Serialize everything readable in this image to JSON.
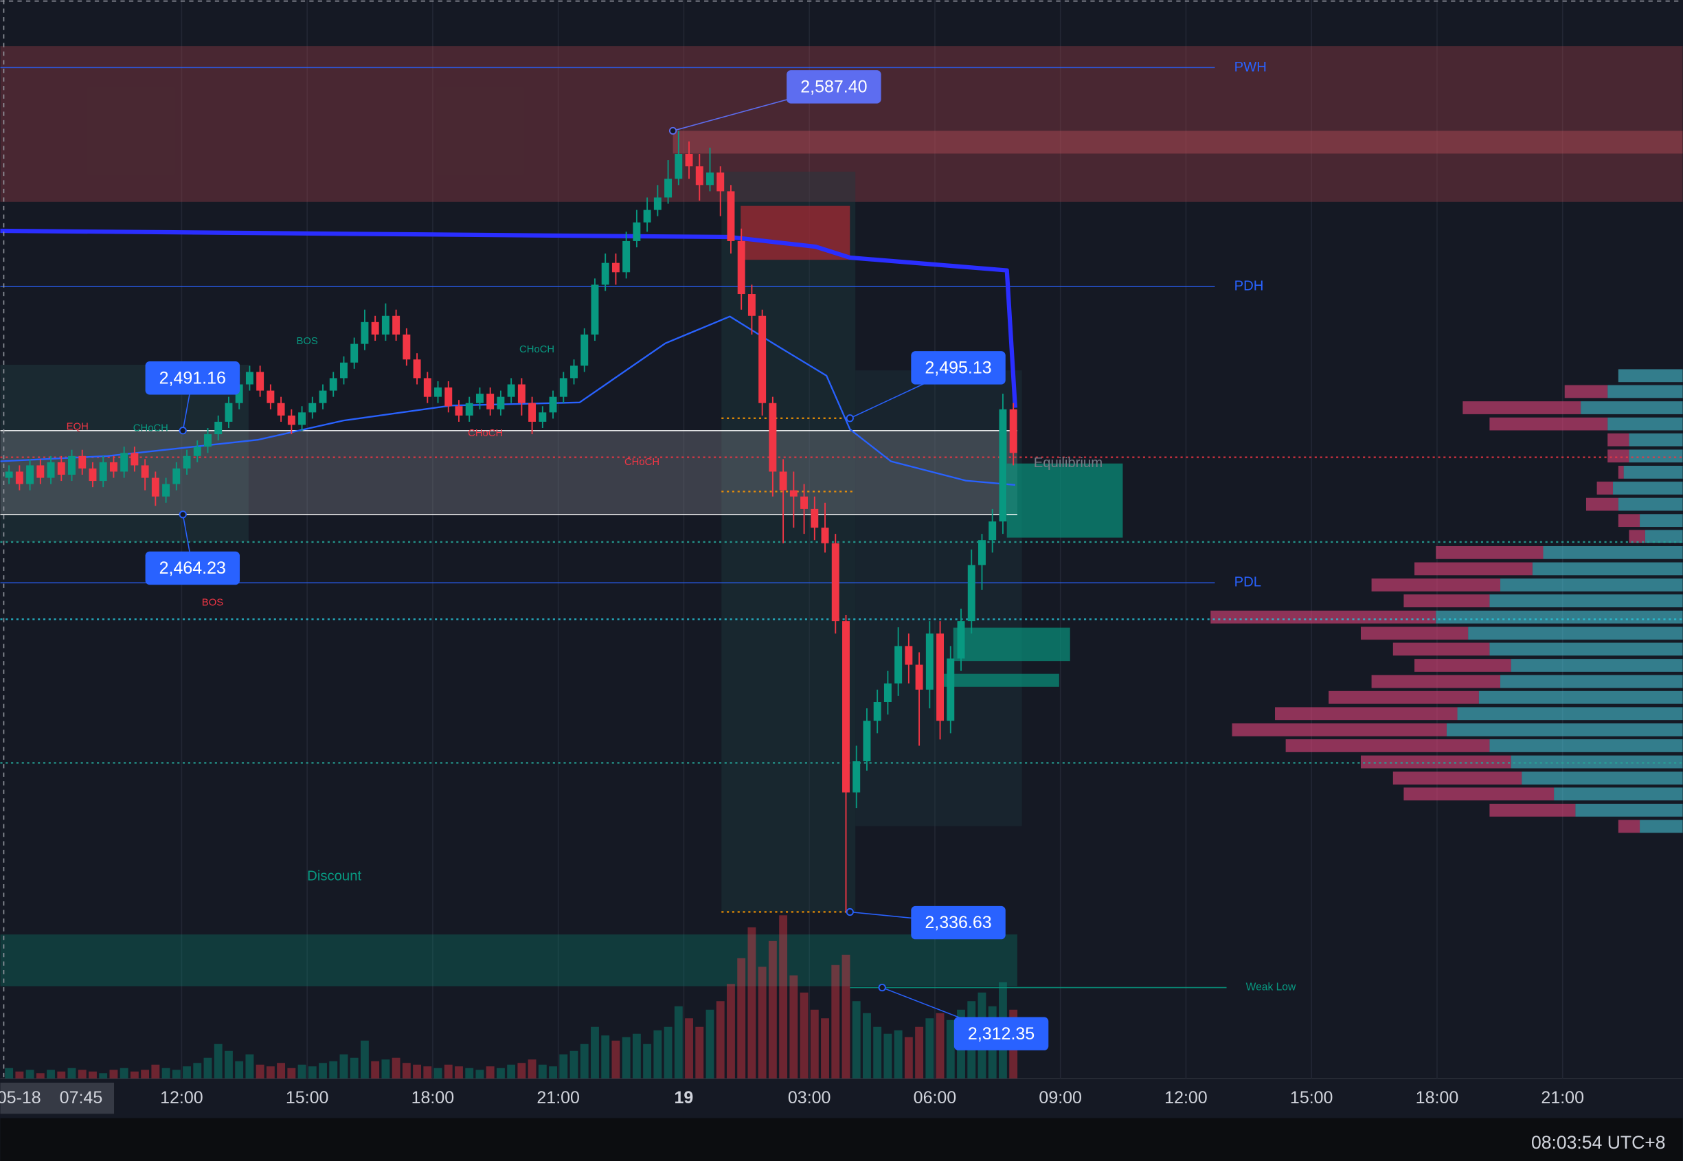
{
  "chart_data": {
    "type": "candlestick",
    "xlim": [
      7.667,
      47.87
    ],
    "ylim": [
      2283.2,
      2629.4
    ],
    "xticks": [
      {
        "value": 12,
        "label": "12:00"
      },
      {
        "value": 15,
        "label": "15:00"
      },
      {
        "value": 18,
        "label": "18:00"
      },
      {
        "value": 21,
        "label": "21:00"
      },
      {
        "value": 24,
        "label": "19",
        "bold": true
      },
      {
        "value": 27,
        "label": "03:00"
      },
      {
        "value": 30,
        "label": "06:00"
      },
      {
        "value": 33,
        "label": "09:00"
      },
      {
        "value": 36,
        "label": "12:00"
      },
      {
        "value": 39,
        "label": "15:00"
      },
      {
        "value": 42,
        "label": "18:00"
      },
      {
        "value": 45,
        "label": "21:00"
      }
    ],
    "crosshair": {
      "x": 7.75,
      "date": "05-18",
      "time": "07:45"
    },
    "up_color": "#089981",
    "down_color": "#f23645",
    "x": [
      7.75,
      8,
      8.25,
      8.5,
      8.75,
      9,
      9.25,
      9.5,
      9.75,
      10,
      10.25,
      10.5,
      10.75,
      11,
      11.25,
      11.5,
      11.75,
      12,
      12.25,
      12.5,
      12.75,
      13,
      13.25,
      13.5,
      13.75,
      14,
      14.25,
      14.5,
      14.75,
      15,
      15.25,
      15.5,
      15.75,
      16,
      16.25,
      16.5,
      16.75,
      17,
      17.25,
      17.5,
      17.75,
      18,
      18.25,
      18.5,
      18.75,
      19,
      19.25,
      19.5,
      19.75,
      20,
      20.25,
      20.5,
      20.75,
      21,
      21.25,
      21.5,
      21.75,
      22,
      22.25,
      22.5,
      22.75,
      23,
      23.25,
      23.5,
      23.75,
      24,
      24.25,
      24.5,
      24.75,
      25,
      25.25,
      25.5,
      25.75,
      26,
      26.25,
      26.5,
      26.75,
      27,
      27.25,
      27.5,
      27.75,
      28,
      28.25,
      28.5,
      28.75,
      29,
      29.25,
      29.5,
      29.75,
      30,
      30.25,
      30.5,
      30.75,
      31,
      31.25,
      31.5,
      31.75
    ],
    "open": [
      2476,
      2478,
      2474,
      2480,
      2476,
      2481,
      2477,
      2483,
      2479,
      2475,
      2481,
      2478,
      2484,
      2480,
      2476,
      2470,
      2474,
      2479,
      2483,
      2486,
      2490,
      2494,
      2500,
      2506,
      2510,
      2504,
      2500,
      2496,
      2493,
      2497,
      2500,
      2504,
      2508,
      2513,
      2519,
      2526,
      2522,
      2528,
      2522,
      2514,
      2508,
      2502,
      2505,
      2499,
      2496,
      2500,
      2503,
      2498,
      2502,
      2506,
      2500,
      2494,
      2497,
      2502,
      2508,
      2512,
      2522,
      2538,
      2545,
      2542,
      2552,
      2558,
      2562,
      2566,
      2572,
      2580,
      2576,
      2570,
      2574,
      2568,
      2552,
      2535,
      2528,
      2500,
      2478,
      2472,
      2470,
      2466,
      2460,
      2455,
      2430,
      2375,
      2385,
      2398,
      2404,
      2410,
      2422,
      2416,
      2408,
      2426,
      2398,
      2418,
      2430,
      2448,
      2456,
      2462,
      2498
    ],
    "high": [
      2480,
      2480,
      2482,
      2482,
      2483,
      2483,
      2485,
      2485,
      2481,
      2483,
      2483,
      2486,
      2486,
      2482,
      2478,
      2476,
      2481,
      2485,
      2488,
      2492,
      2496,
      2502,
      2510,
      2512,
      2512,
      2506,
      2502,
      2498,
      2499,
      2502,
      2506,
      2510,
      2515,
      2521,
      2530,
      2528,
      2532,
      2530,
      2524,
      2516,
      2510,
      2507,
      2507,
      2501,
      2502,
      2505,
      2505,
      2504,
      2508,
      2508,
      2502,
      2499,
      2504,
      2510,
      2514,
      2524,
      2540,
      2548,
      2548,
      2555,
      2562,
      2566,
      2570,
      2578,
      2587.4,
      2584,
      2580,
      2582,
      2576,
      2570,
      2556,
      2538,
      2530,
      2502,
      2482,
      2478,
      2474,
      2470,
      2468,
      2458,
      2432,
      2390,
      2402,
      2408,
      2414,
      2428,
      2426,
      2420,
      2430,
      2430,
      2422,
      2434,
      2453,
      2458,
      2466,
      2503,
      2500
    ],
    "low": [
      2474,
      2472,
      2472,
      2474,
      2474,
      2475,
      2475,
      2477,
      2473,
      2473,
      2476,
      2476,
      2478,
      2472,
      2467,
      2468,
      2472,
      2477,
      2481,
      2484,
      2488,
      2492,
      2498,
      2504,
      2502,
      2498,
      2494,
      2490,
      2491,
      2495,
      2498,
      2502,
      2506,
      2511,
      2517,
      2520,
      2520,
      2520,
      2512,
      2506,
      2500,
      2500,
      2497,
      2494,
      2494,
      2498,
      2496,
      2496,
      2500,
      2496,
      2490,
      2492,
      2495,
      2500,
      2506,
      2510,
      2520,
      2536,
      2538,
      2540,
      2550,
      2555,
      2560,
      2564,
      2570,
      2572,
      2565,
      2568,
      2560,
      2548,
      2530,
      2522,
      2496,
      2470,
      2455,
      2460,
      2458,
      2456,
      2452,
      2426,
      2336.63,
      2370,
      2382,
      2394,
      2400,
      2406,
      2410,
      2390,
      2402,
      2392,
      2394,
      2414,
      2426,
      2440,
      2452,
      2458,
      2480
    ],
    "close": [
      2478,
      2474,
      2480,
      2476,
      2481,
      2477,
      2483,
      2479,
      2475,
      2481,
      2478,
      2484,
      2480,
      2476,
      2470,
      2474,
      2479,
      2483,
      2486,
      2490,
      2494,
      2500,
      2506,
      2510,
      2504,
      2500,
      2496,
      2493,
      2497,
      2500,
      2504,
      2508,
      2513,
      2519,
      2526,
      2522,
      2528,
      2522,
      2514,
      2508,
      2502,
      2505,
      2499,
      2496,
      2500,
      2503,
      2498,
      2502,
      2506,
      2500,
      2494,
      2497,
      2502,
      2508,
      2512,
      2522,
      2538,
      2545,
      2542,
      2552,
      2558,
      2562,
      2566,
      2572,
      2580,
      2576,
      2570,
      2574,
      2568,
      2552,
      2535,
      2528,
      2500,
      2478,
      2472,
      2470,
      2466,
      2460,
      2455,
      2430,
      2375,
      2385,
      2398,
      2404,
      2410,
      2422,
      2416,
      2408,
      2426,
      2398,
      2418,
      2430,
      2448,
      2456,
      2462,
      2498,
      2484
    ],
    "volume": {
      "ylim": [
        0,
        100
      ],
      "values": [
        6,
        4,
        5,
        3,
        5,
        4,
        6,
        5,
        4,
        3,
        5,
        6,
        4,
        5,
        8,
        6,
        5,
        7,
        9,
        12,
        20,
        16,
        10,
        14,
        8,
        7,
        9,
        6,
        8,
        7,
        9,
        10,
        14,
        12,
        22,
        10,
        11,
        12,
        9,
        8,
        7,
        6,
        8,
        7,
        6,
        5,
        7,
        6,
        8,
        9,
        11,
        8,
        7,
        14,
        16,
        20,
        30,
        25,
        22,
        24,
        26,
        20,
        28,
        30,
        42,
        35,
        30,
        40,
        45,
        55,
        70,
        88,
        65,
        80,
        95,
        60,
        50,
        40,
        35,
        66,
        72,
        45,
        38,
        30,
        26,
        28,
        24,
        30,
        35,
        38,
        34,
        40,
        45,
        50,
        42,
        56,
        40
      ]
    },
    "zones": [
      {
        "t": [
          7.667,
          47.87
        ],
        "p": [
          2614.6,
          2564.6
        ],
        "color": "#b2454f55"
      },
      {
        "t": [
          23.74,
          47.87
        ],
        "p": [
          2587.4,
          2580.1
        ],
        "color": "#c0505a66"
      },
      {
        "t": [
          7.667,
          13.6
        ],
        "p": [
          2512.3,
          2455.4
        ],
        "color": "#23414566"
      },
      {
        "t": [
          24.9,
          28.1
        ],
        "p": [
          2574.3,
          2336.6
        ],
        "color": "#1f3d4266"
      },
      {
        "t": [
          28.1,
          32.08
        ],
        "p": [
          2510.5,
          2364.2
        ],
        "color": "#1f3d4255"
      },
      {
        "t": [
          7.667,
          31.97
        ],
        "p": [
          2491.16,
          2464.23
        ],
        "color": "#8a8d9655"
      },
      {
        "t": [
          7.667,
          31.97
        ],
        "p": [
          2329.4,
          2312.8
        ],
        "color": "#08998144"
      },
      {
        "t": [
          25.36,
          27.97
        ],
        "p": [
          2563.3,
          2546.0
        ],
        "color": "#b22833aa"
      },
      {
        "t": [
          31.72,
          34.49
        ],
        "p": [
          2480.6,
          2456.8
        ],
        "color": "#089981aa"
      },
      {
        "t": [
          30.44,
          33.23
        ],
        "p": [
          2427.9,
          2417.2
        ],
        "color": "#089981aa"
      },
      {
        "t": [
          30.18,
          32.97
        ],
        "p": [
          2413.1,
          2408.9
        ],
        "color": "#089981aa"
      }
    ],
    "levels": [
      {
        "p": 2607.7,
        "t": [
          7.667,
          36.69
        ],
        "color": "#2962ff",
        "style": "solid",
        "label": "PWH"
      },
      {
        "p": 2537.4,
        "t": [
          7.667,
          36.69
        ],
        "color": "#2962ff",
        "style": "solid",
        "label": "PDH"
      },
      {
        "p": 2442.3,
        "t": [
          7.667,
          36.69
        ],
        "color": "#2962ff",
        "style": "solid",
        "label": "PDL"
      },
      {
        "p": 2312.35,
        "t": [
          27.97,
          36.97
        ],
        "color": "#089981",
        "style": "solid",
        "label": "Weak Low"
      },
      {
        "p": 2491.16,
        "t": [
          7.667,
          31.97
        ],
        "color": "#ffffff",
        "style": "solid"
      },
      {
        "p": 2464.23,
        "t": [
          7.667,
          31.97
        ],
        "color": "#ffffff",
        "style": "solid"
      },
      {
        "p": 2482.6,
        "t": [
          7.667,
          47.87
        ],
        "color": "#f23645",
        "style": "dotted"
      },
      {
        "p": 2455.4,
        "t": [
          7.667,
          47.87
        ],
        "color": "#26a69a",
        "style": "dotted"
      },
      {
        "p": 2430.6,
        "t": [
          7.667,
          47.87
        ],
        "color": "#26c6da",
        "style": "dotted"
      },
      {
        "p": 2384.5,
        "t": [
          7.667,
          47.87
        ],
        "color": "#26a69a",
        "style": "dotted"
      },
      {
        "p": 2471.6,
        "t": [
          24.9,
          28.1
        ],
        "color": "#ff9800",
        "style": "dotted"
      },
      {
        "p": 2495.13,
        "t": [
          24.9,
          27.97
        ],
        "color": "#ff9800",
        "style": "dotted"
      },
      {
        "p": 2336.63,
        "t": [
          24.9,
          27.97
        ],
        "color": "#ff9800",
        "style": "dotted"
      }
    ],
    "lines": [
      {
        "color": "#2a2eff",
        "width": 4,
        "x": [
          7.667,
          25.1,
          27.15,
          27.97,
          31.72,
          31.92
        ],
        "y": [
          2555.3,
          2553.3,
          2550.2,
          2546.7,
          2542.6,
          2498.5
        ]
      },
      {
        "color": "#2962ff",
        "width": 1.5,
        "x": [
          7.667,
          10.23,
          13.82,
          15.87,
          18.44,
          21.51,
          23.56,
          25.1,
          26.13,
          27.41,
          27.97,
          28.95,
          30.74,
          31.92
        ],
        "y": [
          2481.3,
          2483.0,
          2488.2,
          2494.4,
          2499.2,
          2500.2,
          2519.2,
          2527.8,
          2519.2,
          2508.8,
          2491.6,
          2481.3,
          2475.1,
          2473.7
        ]
      }
    ],
    "profile": {
      "xlim": [
        0,
        500
      ],
      "buy_color": "#4dd0e1",
      "sell_color": "#e0457b",
      "prices": [
        2508.8,
        2503.7,
        2498.5,
        2493.3,
        2488.2,
        2483.0,
        2477.8,
        2472.7,
        2467.5,
        2462.3,
        2457.2,
        2452.0,
        2446.8,
        2441.6,
        2436.5,
        2431.3,
        2426.1,
        2421.0,
        2415.8,
        2410.6,
        2405.5,
        2400.3,
        2395.1,
        2390.0,
        2384.8,
        2379.6,
        2374.5,
        2369.3,
        2364.1
      ],
      "buy": [
        60,
        70,
        95,
        70,
        50,
        50,
        55,
        65,
        60,
        40,
        35,
        130,
        140,
        170,
        180,
        230,
        200,
        180,
        160,
        170,
        190,
        210,
        220,
        180,
        160,
        150,
        120,
        100,
        40
      ],
      "sell": [
        0,
        40,
        110,
        110,
        20,
        20,
        5,
        15,
        30,
        20,
        15,
        100,
        110,
        120,
        80,
        210,
        100,
        90,
        90,
        120,
        140,
        170,
        200,
        190,
        140,
        120,
        140,
        80,
        20
      ]
    },
    "callouts": [
      {
        "value": 2587.4,
        "label": "2,587.40",
        "x": 23.74,
        "color": "#5d6df0"
      },
      {
        "value": 2491.16,
        "label": "2,491.16",
        "x": 12.03,
        "color": "#2962ff"
      },
      {
        "value": 2464.23,
        "label": "2,464.23",
        "x": 12.03,
        "color": "#2962ff"
      },
      {
        "value": 2495.13,
        "label": "2,495.13",
        "x": 27.97,
        "color": "#2962ff"
      },
      {
        "value": 2336.63,
        "label": "2,336.63",
        "x": 27.97,
        "color": "#2962ff"
      },
      {
        "value": 2312.35,
        "label": "2,312.35",
        "x": 28.74,
        "color": "#2962ff"
      }
    ],
    "annotations": [
      {
        "text": "BOS",
        "x": 15.0,
        "y": 2519.8,
        "color": "#089981"
      },
      {
        "text": "CHoCH",
        "x": 20.49,
        "y": 2517.1,
        "color": "#089981"
      },
      {
        "text": "CHoCH",
        "x": 11.26,
        "y": 2491.9,
        "color": "#089981"
      },
      {
        "text": "EQH",
        "x": 9.51,
        "y": 2492.3,
        "color": "#f23645"
      },
      {
        "text": "CHoCH",
        "x": 19.26,
        "y": 2490.2,
        "color": "#f23645"
      },
      {
        "text": "CHoCH",
        "x": 23.0,
        "y": 2480.9,
        "color": "#f23645"
      },
      {
        "text": "BOS",
        "x": 12.74,
        "y": 2435.8,
        "color": "#f23645"
      },
      {
        "text": "Equilibrium",
        "x": 32.36,
        "y": 2480.6,
        "color": "#787b86"
      },
      {
        "text": "Discount",
        "x": 15.0,
        "y": 2348.0,
        "color": "#089981"
      }
    ]
  },
  "status_bar": {
    "clock": "08:03:54 UTC+8"
  }
}
